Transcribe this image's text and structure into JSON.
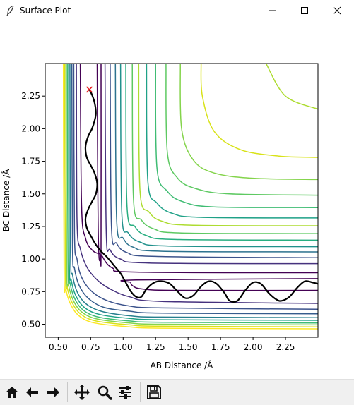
{
  "window": {
    "title": "Surface Plot"
  },
  "toolbar": {
    "buttons": [
      "home-icon",
      "back-arrow-icon",
      "forward-arrow-icon",
      "pan-icon",
      "zoom-icon",
      "configure-subplots-icon",
      "save-icon"
    ]
  },
  "chart_data": {
    "type": "contour",
    "xlabel": "AB Distance /Å",
    "ylabel": "BC Distance /Å",
    "xlim": [
      0.4,
      2.5
    ],
    "ylim": [
      0.4,
      2.5
    ],
    "xticks": [
      "0.50",
      "0.75",
      "1.00",
      "1.25",
      "1.50",
      "1.75",
      "2.00",
      "2.25"
    ],
    "xtick_values": [
      0.5,
      0.75,
      1.0,
      1.25,
      1.5,
      1.75,
      2.0,
      2.25
    ],
    "yticks": [
      "0.50",
      "0.75",
      "1.00",
      "1.25",
      "1.50",
      "1.75",
      "2.00",
      "2.25"
    ],
    "ytick_values": [
      0.5,
      0.75,
      1.0,
      1.25,
      1.5,
      1.75,
      2.0,
      2.25
    ],
    "colormap": "viridis",
    "contour_colors": [
      "#440154",
      "#46327e",
      "#365c8d",
      "#277f8e",
      "#1fa187",
      "#4ac16d",
      "#a0da39",
      "#fde725"
    ],
    "marker": {
      "x": 0.74,
      "y": 2.3,
      "symbol": "x",
      "color": "#e41a1c"
    },
    "trajectory": {
      "color": "#000000",
      "points": [
        [
          0.74,
          2.3
        ],
        [
          0.76,
          2.26
        ],
        [
          0.78,
          2.2
        ],
        [
          0.79,
          2.12
        ],
        [
          0.78,
          2.06
        ],
        [
          0.76,
          2.0
        ],
        [
          0.73,
          1.94
        ],
        [
          0.71,
          1.86
        ],
        [
          0.72,
          1.78
        ],
        [
          0.75,
          1.72
        ],
        [
          0.78,
          1.66
        ],
        [
          0.8,
          1.58
        ],
        [
          0.79,
          1.5
        ],
        [
          0.76,
          1.44
        ],
        [
          0.73,
          1.38
        ],
        [
          0.71,
          1.31
        ],
        [
          0.72,
          1.24
        ],
        [
          0.75,
          1.18
        ],
        [
          0.79,
          1.11
        ],
        [
          0.83,
          1.06
        ],
        [
          0.88,
          1.01
        ],
        [
          0.93,
          0.95
        ],
        [
          0.98,
          0.89
        ],
        [
          1.02,
          0.82
        ],
        [
          1.06,
          0.75
        ],
        [
          1.1,
          0.71
        ],
        [
          1.14,
          0.71
        ],
        [
          1.18,
          0.77
        ],
        [
          1.24,
          0.82
        ],
        [
          1.3,
          0.83
        ],
        [
          1.36,
          0.81
        ],
        [
          1.42,
          0.75
        ],
        [
          1.48,
          0.7
        ],
        [
          1.54,
          0.72
        ],
        [
          1.6,
          0.79
        ],
        [
          1.66,
          0.83
        ],
        [
          1.72,
          0.81
        ],
        [
          1.78,
          0.74
        ],
        [
          1.82,
          0.68
        ],
        [
          1.88,
          0.68
        ],
        [
          1.94,
          0.76
        ],
        [
          2.0,
          0.82
        ],
        [
          2.06,
          0.81
        ],
        [
          2.12,
          0.74
        ],
        [
          2.18,
          0.69
        ],
        [
          2.22,
          0.68
        ],
        [
          2.28,
          0.71
        ],
        [
          2.34,
          0.78
        ],
        [
          2.4,
          0.83
        ],
        [
          2.46,
          0.82
        ],
        [
          2.5,
          0.81
        ]
      ]
    },
    "contours": [
      {
        "level": 0,
        "color": "#440154",
        "segments": [
          [
            [
              0.67,
              2.5
            ],
            [
              0.68,
              1.4
            ],
            [
              0.71,
              1.16
            ],
            [
              0.76,
              1.07
            ],
            [
              0.82,
              1.04
            ],
            [
              0.83,
              1.06
            ],
            [
              0.83,
              2.5
            ]
          ],
          [
            [
              2.5,
              0.85
            ],
            [
              1.1,
              0.84
            ],
            [
              1.06,
              0.82
            ],
            [
              1.08,
              0.79
            ],
            [
              1.15,
              0.77
            ],
            [
              1.4,
              0.76
            ],
            [
              2.5,
              0.76
            ]
          ]
        ]
      },
      {
        "level": 1,
        "color": "#46327e",
        "segments": [
          [
            [
              0.64,
              2.5
            ],
            [
              0.645,
              1.3
            ],
            [
              0.67,
              1.08
            ],
            [
              0.72,
              0.94
            ],
            [
              0.8,
              0.84
            ],
            [
              0.9,
              0.77
            ],
            [
              1.05,
              0.71
            ],
            [
              1.3,
              0.675
            ],
            [
              2.5,
              0.66
            ]
          ]
        ]
      },
      {
        "level": 2,
        "color": "#46327e",
        "segments": [
          [
            [
              0.86,
              2.5
            ],
            [
              0.87,
              1.2
            ],
            [
              0.9,
              1.07
            ],
            [
              0.98,
              1.0
            ],
            [
              1.2,
              0.97
            ],
            [
              2.5,
              0.965
            ]
          ]
        ]
      },
      {
        "level": 3,
        "color": "#3b528b",
        "segments": [
          [
            [
              0.62,
              2.5
            ],
            [
              0.625,
              1.2
            ],
            [
              0.645,
              1.0
            ],
            [
              0.68,
              0.86
            ],
            [
              0.76,
              0.75
            ],
            [
              0.88,
              0.68
            ],
            [
              1.05,
              0.64
            ],
            [
              1.3,
              0.625
            ],
            [
              2.5,
              0.615
            ]
          ]
        ]
      },
      {
        "level": 4,
        "color": "#3b528b",
        "segments": [
          [
            [
              0.9,
              2.5
            ],
            [
              0.91,
              1.25
            ],
            [
              0.95,
              1.12
            ],
            [
              1.03,
              1.05
            ],
            [
              1.25,
              1.02
            ],
            [
              2.5,
              1.01
            ]
          ]
        ]
      },
      {
        "level": 5,
        "color": "#365c8d",
        "segments": [
          [
            [
              0.605,
              2.5
            ],
            [
              0.61,
              1.1
            ],
            [
              0.625,
              0.93
            ],
            [
              0.66,
              0.8
            ],
            [
              0.73,
              0.7
            ],
            [
              0.85,
              0.63
            ],
            [
              1.05,
              0.6
            ],
            [
              1.3,
              0.585
            ],
            [
              2.5,
              0.58
            ]
          ]
        ]
      },
      {
        "level": 6,
        "color": "#2c728e",
        "segments": [
          [
            [
              0.94,
              2.5
            ],
            [
              0.95,
              1.3
            ],
            [
              1.0,
              1.16
            ],
            [
              1.08,
              1.09
            ],
            [
              1.3,
              1.06
            ],
            [
              2.5,
              1.055
            ]
          ]
        ]
      },
      {
        "level": 7,
        "color": "#277f8e",
        "segments": [
          [
            [
              0.59,
              2.5
            ],
            [
              0.595,
              1.05
            ],
            [
              0.61,
              0.88
            ],
            [
              0.645,
              0.75
            ],
            [
              0.71,
              0.66
            ],
            [
              0.83,
              0.6
            ],
            [
              1.05,
              0.565
            ],
            [
              1.3,
              0.555
            ],
            [
              2.5,
              0.55
            ]
          ]
        ]
      },
      {
        "level": 8,
        "color": "#21918c",
        "segments": [
          [
            [
              0.98,
              2.5
            ],
            [
              0.99,
              1.35
            ],
            [
              1.04,
              1.2
            ],
            [
              1.13,
              1.13
            ],
            [
              1.35,
              1.1
            ],
            [
              2.5,
              1.095
            ]
          ]
        ]
      },
      {
        "level": 9,
        "color": "#1fa187",
        "segments": [
          [
            [
              0.58,
              2.5
            ],
            [
              0.585,
              1.0
            ],
            [
              0.6,
              0.84
            ],
            [
              0.635,
              0.72
            ],
            [
              0.7,
              0.63
            ],
            [
              0.82,
              0.575
            ],
            [
              1.05,
              0.545
            ],
            [
              1.3,
              0.535
            ],
            [
              2.5,
              0.53
            ]
          ]
        ]
      },
      {
        "level": 10,
        "color": "#28ae80",
        "segments": [
          [
            [
              1.02,
              2.5
            ],
            [
              1.03,
              1.4
            ],
            [
              1.09,
              1.25
            ],
            [
              1.18,
              1.18
            ],
            [
              1.4,
              1.15
            ],
            [
              2.5,
              1.145
            ]
          ]
        ]
      },
      {
        "level": 11,
        "color": "#3fbc73",
        "segments": [
          [
            [
              0.57,
              2.5
            ],
            [
              0.575,
              0.97
            ],
            [
              0.59,
              0.82
            ],
            [
              0.625,
              0.7
            ],
            [
              0.69,
              0.61
            ],
            [
              0.81,
              0.555
            ],
            [
              1.05,
              0.525
            ],
            [
              1.3,
              0.515
            ],
            [
              2.5,
              0.51
            ]
          ]
        ]
      },
      {
        "level": 12,
        "color": "#5ec962",
        "segments": [
          [
            [
              1.07,
              2.5
            ],
            [
              1.08,
              1.45
            ],
            [
              1.14,
              1.3
            ],
            [
              1.24,
              1.23
            ],
            [
              1.45,
              1.2
            ],
            [
              2.5,
              1.195
            ]
          ]
        ]
      },
      {
        "level": 13,
        "color": "#84d44b",
        "segments": [
          [
            [
              0.56,
              2.5
            ],
            [
              0.565,
              0.95
            ],
            [
              0.58,
              0.8
            ],
            [
              0.615,
              0.685
            ],
            [
              0.68,
              0.595
            ],
            [
              0.8,
              0.54
            ],
            [
              1.05,
              0.51
            ],
            [
              1.3,
              0.5
            ],
            [
              2.5,
              0.495
            ]
          ]
        ]
      },
      {
        "level": 14,
        "color": "#addc30",
        "segments": [
          [
            [
              1.12,
              2.5
            ],
            [
              1.13,
              1.52
            ],
            [
              1.2,
              1.36
            ],
            [
              1.3,
              1.29
            ],
            [
              1.52,
              1.26
            ],
            [
              2.5,
              1.255
            ]
          ]
        ]
      },
      {
        "level": 15,
        "color": "#d8e219",
        "segments": [
          [
            [
              0.55,
              2.5
            ],
            [
              0.555,
              0.93
            ],
            [
              0.57,
              0.78
            ],
            [
              0.605,
              0.67
            ],
            [
              0.67,
              0.58
            ],
            [
              0.79,
              0.525
            ],
            [
              1.05,
              0.495
            ],
            [
              1.3,
              0.485
            ],
            [
              2.5,
              0.48
            ]
          ]
        ]
      },
      {
        "level": 16,
        "color": "#fde725",
        "segments": [
          [
            [
              0.54,
              2.5
            ],
            [
              0.545,
              0.91
            ],
            [
              0.56,
              0.765
            ],
            [
              0.595,
              0.655
            ],
            [
              0.66,
              0.565
            ],
            [
              0.78,
              0.51
            ],
            [
              1.05,
              0.48
            ],
            [
              1.3,
              0.47
            ],
            [
              2.5,
              0.465
            ]
          ]
        ]
      },
      {
        "level": 17,
        "color": "#440154",
        "segments": [
          [
            [
              0.8,
              2.5
            ],
            [
              0.81,
              1.12
            ],
            [
              0.84,
              1.02
            ],
            [
              0.92,
              0.93
            ],
            [
              1.1,
              0.9
            ],
            [
              2.5,
              0.895
            ]
          ]
        ]
      },
      {
        "level": 18,
        "color": "#1fa187",
        "segments": [
          [
            [
              1.18,
              2.5
            ],
            [
              1.19,
              1.6
            ],
            [
              1.26,
              1.43
            ],
            [
              1.38,
              1.35
            ],
            [
              1.6,
              1.32
            ],
            [
              2.5,
              1.315
            ]
          ]
        ]
      },
      {
        "level": 19,
        "color": "#3fbc73",
        "segments": [
          [
            [
              1.25,
              2.5
            ],
            [
              1.26,
              1.7
            ],
            [
              1.34,
              1.52
            ],
            [
              1.46,
              1.44
            ],
            [
              1.7,
              1.4
            ],
            [
              2.5,
              1.395
            ]
          ]
        ]
      },
      {
        "level": 20,
        "color": "#5ec962",
        "segments": [
          [
            [
              1.33,
              2.5
            ],
            [
              1.34,
              1.82
            ],
            [
              1.42,
              1.62
            ],
            [
              1.56,
              1.54
            ],
            [
              1.82,
              1.5
            ],
            [
              2.5,
              1.49
            ]
          ]
        ]
      },
      {
        "level": 21,
        "color": "#84d44b",
        "segments": [
          [
            [
              1.44,
              2.5
            ],
            [
              1.45,
              2.0
            ],
            [
              1.54,
              1.76
            ],
            [
              1.7,
              1.66
            ],
            [
              2.0,
              1.62
            ],
            [
              2.5,
              1.61
            ]
          ]
        ]
      },
      {
        "level": 22,
        "color": "#d8e219",
        "segments": [
          [
            [
              1.6,
              2.5
            ],
            [
              1.61,
              2.25
            ],
            [
              1.7,
              1.98
            ],
            [
              1.9,
              1.84
            ],
            [
              2.2,
              1.79
            ],
            [
              2.5,
              1.78
            ]
          ]
        ]
      },
      {
        "level": 23,
        "color": "#addc30",
        "segments": [
          [
            [
              2.1,
              2.5
            ],
            [
              2.25,
              2.25
            ],
            [
              2.5,
              2.15
            ]
          ]
        ]
      }
    ]
  }
}
